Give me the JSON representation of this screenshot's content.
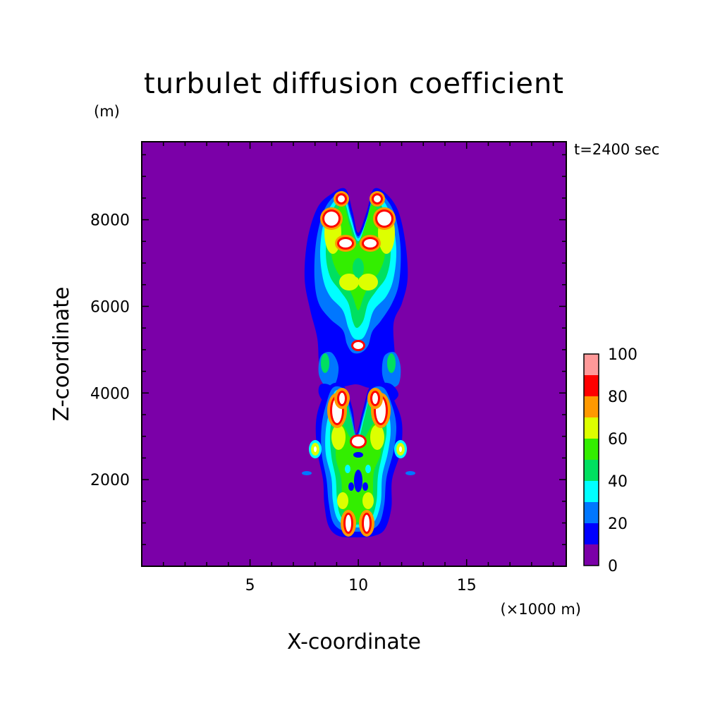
{
  "chart_data": {
    "type": "heatmap",
    "title": "turbulet diffusion coefficient",
    "xlabel": "X-coordinate",
    "ylabel": "Z-coordinate",
    "x_unit": "(×1000 m)",
    "y_unit": "(m)",
    "time_label": "t=2400 sec",
    "xlim": [
      0,
      19.6
    ],
    "ylim": [
      0,
      9800
    ],
    "x_ticks": [
      5,
      10,
      15
    ],
    "y_ticks": [
      2000,
      4000,
      6000,
      8000
    ],
    "x_tick_labels": [
      "5",
      "10",
      "15"
    ],
    "y_tick_labels": [
      "2000",
      "4000",
      "6000",
      "8000"
    ],
    "grid": false,
    "colorbar": {
      "levels": [
        0,
        10,
        20,
        30,
        40,
        50,
        60,
        70,
        80,
        90,
        100
      ],
      "tick_values": [
        0,
        20,
        40,
        60,
        80,
        100
      ],
      "tick_labels": [
        "0",
        "20",
        "40",
        "60",
        "80",
        "100"
      ],
      "colors": [
        "#7b00a8",
        "#0000ff",
        "#0077ff",
        "#00ffff",
        "#00e060",
        "#33ee00",
        "#ddff00",
        "#ff9900",
        "#ff0000",
        "#ff9999"
      ],
      "over_color": "#ffffff"
    },
    "features": [
      {
        "x": 9.4,
        "z": 7600,
        "value": 68
      },
      {
        "x": 11.0,
        "z": 7600,
        "value": 68
      },
      {
        "x": 9.3,
        "z": 8300,
        "value": 100
      },
      {
        "x": 11.1,
        "z": 8300,
        "value": 100
      },
      {
        "x": 9.6,
        "z": 8600,
        "value": 100
      },
      {
        "x": 10.8,
        "z": 8600,
        "value": 100
      },
      {
        "x": 9.8,
        "z": 7600,
        "value": 100
      },
      {
        "x": 10.6,
        "z": 7600,
        "value": 100
      },
      {
        "x": 10.2,
        "z": 6500,
        "value": 55
      },
      {
        "x": 10.2,
        "z": 5200,
        "value": 100
      },
      {
        "x": 8.6,
        "z": 5000,
        "value": 38
      },
      {
        "x": 11.8,
        "z": 5000,
        "value": 38
      },
      {
        "x": 10.2,
        "z": 4600,
        "value": 15
      },
      {
        "x": 9.2,
        "z": 3800,
        "value": 100
      },
      {
        "x": 11.3,
        "z": 3800,
        "value": 100
      },
      {
        "x": 10.2,
        "z": 2900,
        "value": 100
      },
      {
        "x": 8.2,
        "z": 2800,
        "value": 75
      },
      {
        "x": 12.1,
        "z": 2800,
        "value": 75
      },
      {
        "x": 7.6,
        "z": 2250,
        "value": 25
      },
      {
        "x": 12.7,
        "z": 2250,
        "value": 25
      },
      {
        "x": 10.2,
        "z": 1900,
        "value": 50
      },
      {
        "x": 9.8,
        "z": 1200,
        "value": 100
      },
      {
        "x": 10.6,
        "z": 1200,
        "value": 100
      }
    ]
  }
}
